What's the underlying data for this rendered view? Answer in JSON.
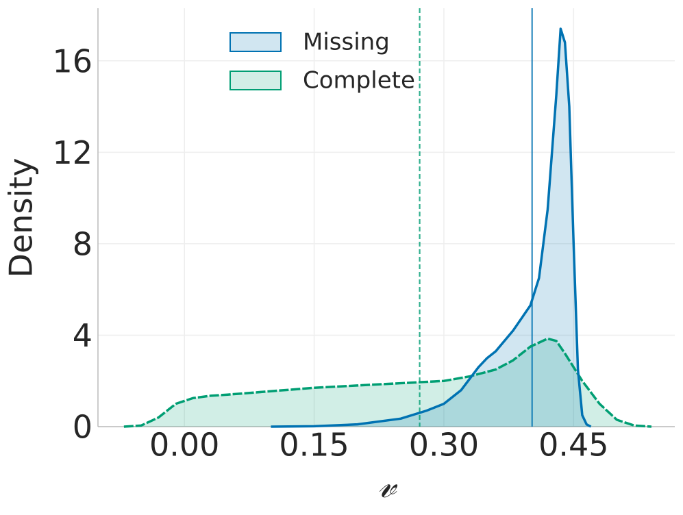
{
  "chart_data": {
    "type": "area",
    "xlabel": "𝓋",
    "ylabel": "Density",
    "xlim": [
      -0.1,
      0.567
    ],
    "ylim": [
      0,
      18.3
    ],
    "xticks": [
      {
        "value": 0,
        "label": "0.00"
      },
      0.15,
      {
        "value": 0.3,
        "label": "0.30"
      },
      0.45
    ],
    "yticks": [
      0,
      4,
      8,
      12,
      16
    ],
    "grid": true,
    "legend": "upper center",
    "series": [
      {
        "name": "Missing",
        "color": "#0072b2",
        "linestyle": "solid",
        "mean": 0.402,
        "x": [
          0.1,
          0.15,
          0.2,
          0.25,
          0.28,
          0.3,
          0.32,
          0.34,
          0.35,
          0.36,
          0.38,
          0.4,
          0.41,
          0.42,
          0.43,
          0.435,
          0.44,
          0.445,
          0.45,
          0.455,
          0.46,
          0.465,
          0.47
        ],
        "values": [
          0,
          0.02,
          0.1,
          0.35,
          0.7,
          1.0,
          1.6,
          2.6,
          3.0,
          3.3,
          4.2,
          5.3,
          6.5,
          9.5,
          14.5,
          17.4,
          16.8,
          14.0,
          8.0,
          2.5,
          0.5,
          0.1,
          0
        ]
      },
      {
        "name": "Complete",
        "color": "#009e73",
        "linestyle": "dashed",
        "mean": 0.272,
        "x": [
          -0.07,
          -0.05,
          -0.03,
          -0.01,
          0.01,
          0.03,
          0.05,
          0.1,
          0.15,
          0.2,
          0.25,
          0.3,
          0.33,
          0.36,
          0.38,
          0.4,
          0.42,
          0.43,
          0.44,
          0.46,
          0.48,
          0.5,
          0.52,
          0.54
        ],
        "values": [
          0,
          0.05,
          0.4,
          1.0,
          1.25,
          1.35,
          1.4,
          1.55,
          1.7,
          1.8,
          1.9,
          2.0,
          2.2,
          2.5,
          2.9,
          3.5,
          3.85,
          3.75,
          3.2,
          2.0,
          1.0,
          0.3,
          0.05,
          0
        ]
      }
    ]
  }
}
